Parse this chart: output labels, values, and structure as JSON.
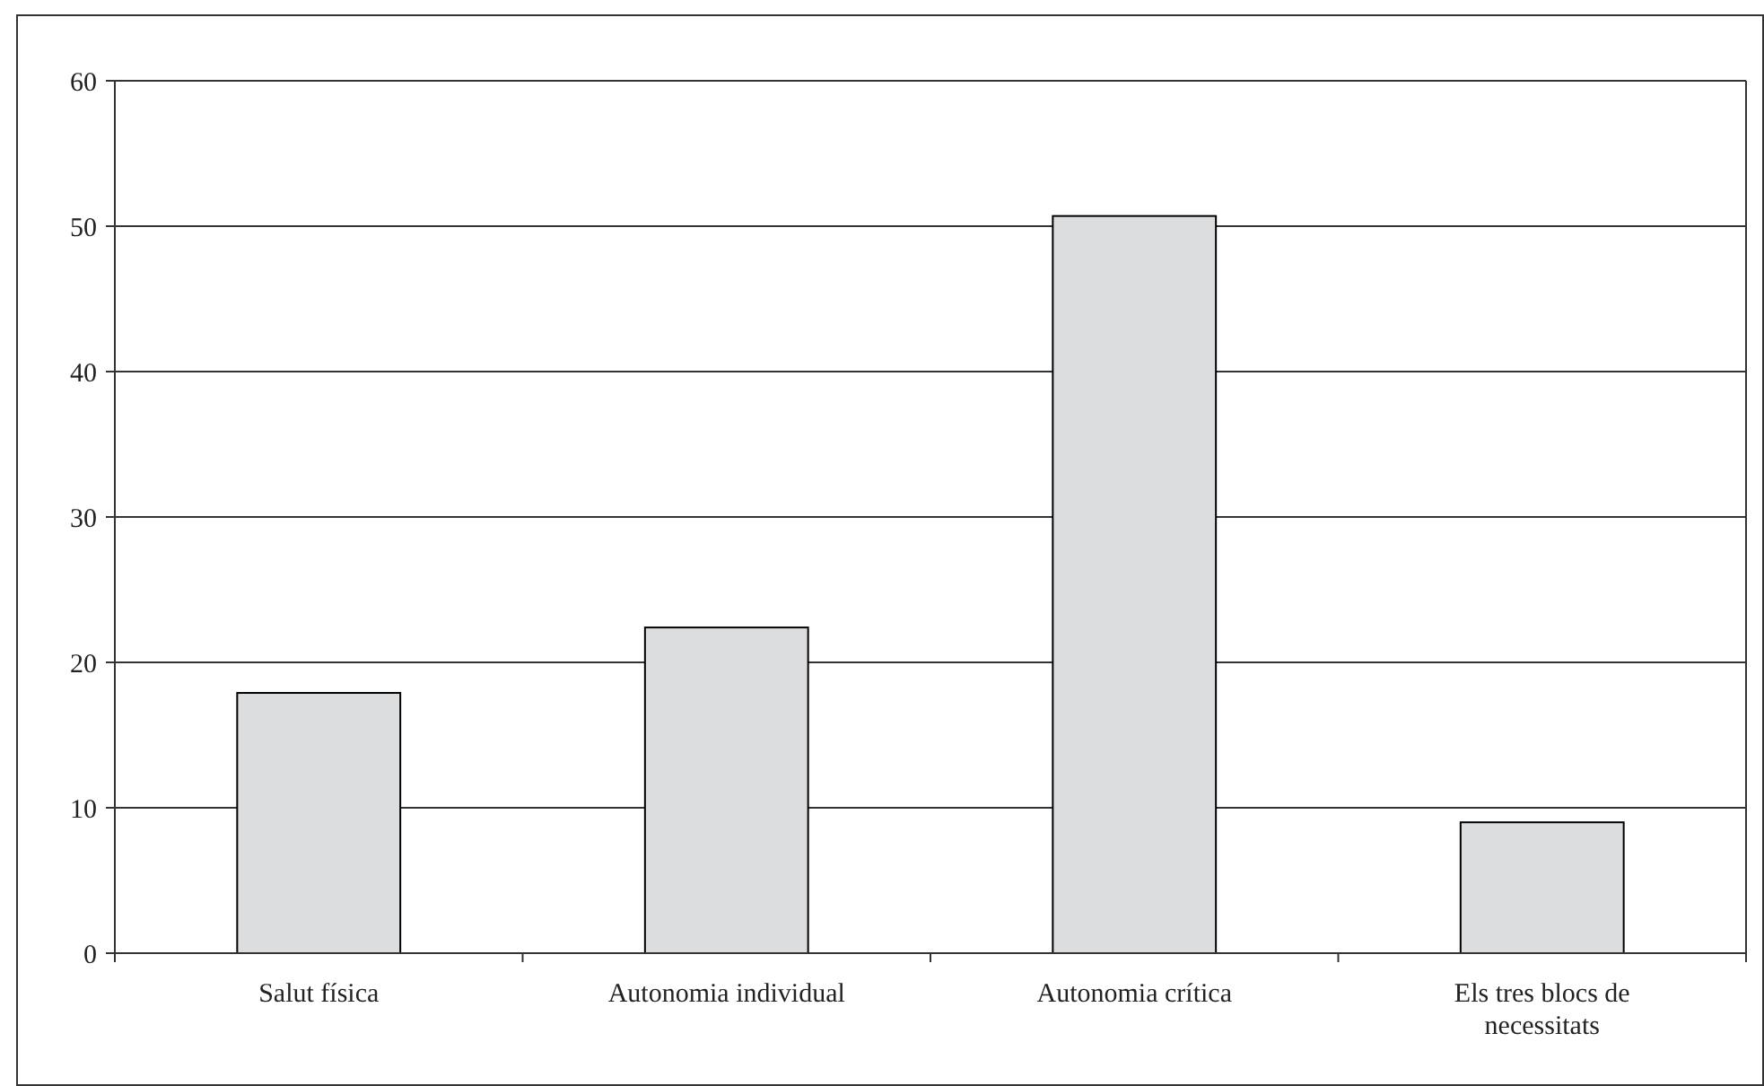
{
  "chart_data": {
    "type": "bar",
    "categories": [
      "Salut física",
      "Autonomia individual",
      "Autonomia crítica",
      "Els tres blocs de necessitats"
    ],
    "values": [
      17.9,
      22.4,
      50.7,
      9.0
    ],
    "color": "#dcdddf",
    "ylim": [
      0,
      60
    ],
    "yticks": [
      0,
      10,
      20,
      30,
      40,
      50,
      60
    ],
    "grid": "y"
  }
}
